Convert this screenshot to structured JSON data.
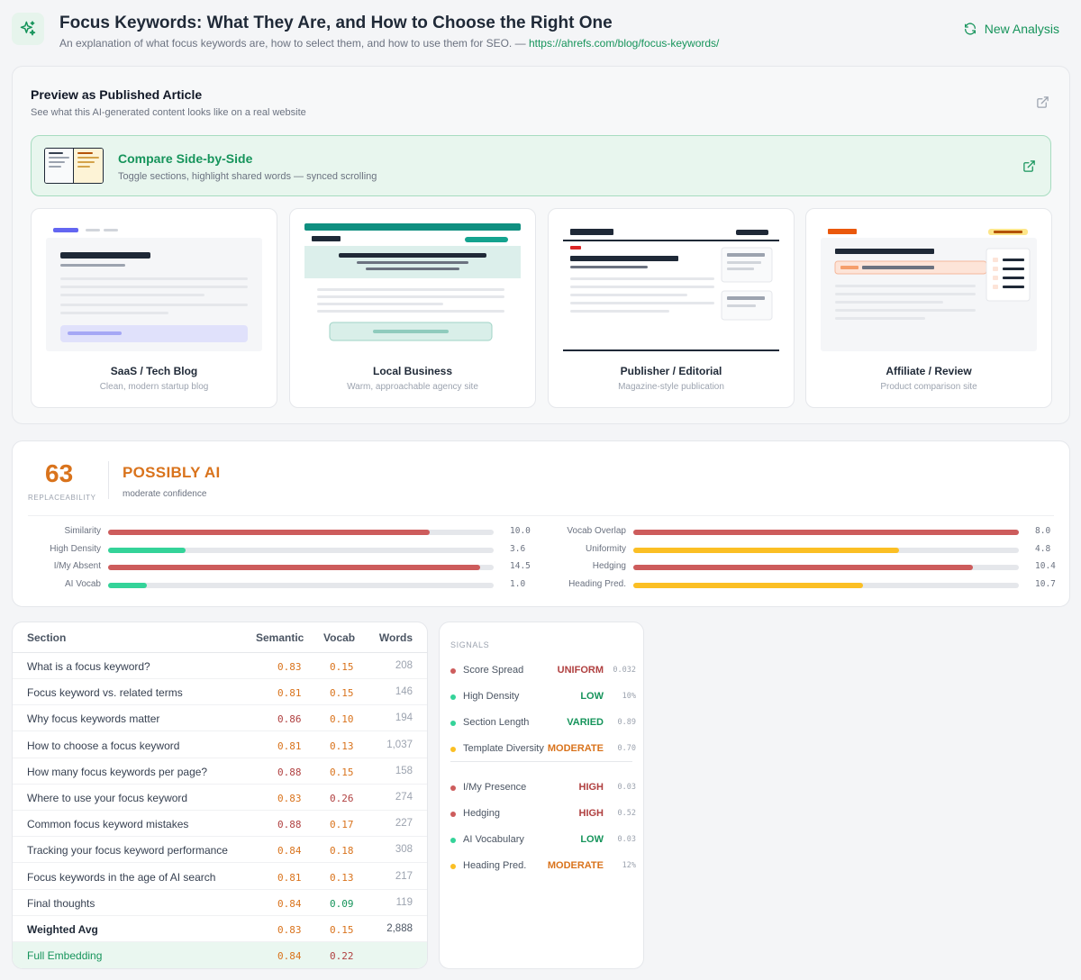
{
  "header": {
    "title": "Focus Keywords: What They Are, and How to Choose the Right One",
    "subtitle": "An explanation of what focus keywords are, how to select them, and how to use them for SEO. —",
    "url": "https://ahrefs.com/blog/focus-keywords/",
    "new_analysis_label": "New Analysis",
    "logo_icon": "sparkles-icon"
  },
  "preview": {
    "title": "Preview as Published Article",
    "description": "See what this AI-generated content looks like on a real website",
    "compare": {
      "title": "Compare Side-by-Side",
      "description": "Toggle sections, highlight shared words — synced scrolling"
    },
    "templates": [
      {
        "name": "SaaS / Tech Blog",
        "description": "Clean, modern startup blog"
      },
      {
        "name": "Local Business",
        "description": "Warm, approachable agency site"
      },
      {
        "name": "Publisher / Editorial",
        "description": "Magazine-style publication"
      },
      {
        "name": "Affiliate / Review",
        "description": "Product comparison site"
      }
    ]
  },
  "score": {
    "value": "63",
    "label": "REPLACEABILITY",
    "verdict": "POSSIBLY AI",
    "confidence": "moderate confidence",
    "colors": {
      "red": "#cd5c5c",
      "green": "#34d399",
      "yellow": "#fbbf24",
      "orange": "#d9731c"
    },
    "metrics_left": [
      {
        "label": "Similarity",
        "value": "10.0",
        "fraction": 0.835,
        "color": "red"
      },
      {
        "label": "High Density",
        "value": "3.6",
        "fraction": 0.2,
        "color": "green"
      },
      {
        "label": "I/My Absent",
        "value": "14.5",
        "fraction": 0.965,
        "color": "red"
      },
      {
        "label": "AI Vocab",
        "value": "1.0",
        "fraction": 0.1,
        "color": "green"
      }
    ],
    "metrics_right": [
      {
        "label": "Vocab Overlap",
        "value": "8.0",
        "fraction": 1.0,
        "color": "red"
      },
      {
        "label": "Uniformity",
        "value": "4.8",
        "fraction": 0.69,
        "color": "yellow"
      },
      {
        "label": "Hedging",
        "value": "10.4",
        "fraction": 0.88,
        "color": "red"
      },
      {
        "label": "Heading Pred.",
        "value": "10.7",
        "fraction": 0.595,
        "color": "yellow"
      }
    ]
  },
  "table": {
    "headers": {
      "section": "Section",
      "semantic": "Semantic",
      "vocab": "Vocab",
      "words": "Words"
    },
    "rows": [
      {
        "section": "What is a focus keyword?",
        "semantic": "0.83",
        "vocab": "0.15",
        "words": "208",
        "sem_color": "#d9731c",
        "voc_color": "#d9731c"
      },
      {
        "section": "Focus keyword vs. related terms",
        "semantic": "0.81",
        "vocab": "0.15",
        "words": "146",
        "sem_color": "#d9731c",
        "voc_color": "#d9731c"
      },
      {
        "section": "Why focus keywords matter",
        "semantic": "0.86",
        "vocab": "0.10",
        "words": "194",
        "sem_color": "#b04040",
        "voc_color": "#d9731c"
      },
      {
        "section": "How to choose a focus keyword",
        "semantic": "0.81",
        "vocab": "0.13",
        "words": "1,037",
        "sem_color": "#d9731c",
        "voc_color": "#d9731c"
      },
      {
        "section": "How many focus keywords per page?",
        "semantic": "0.88",
        "vocab": "0.15",
        "words": "158",
        "sem_color": "#b04040",
        "voc_color": "#d9731c"
      },
      {
        "section": "Where to use your focus keyword",
        "semantic": "0.83",
        "vocab": "0.26",
        "words": "274",
        "sem_color": "#d9731c",
        "voc_color": "#b04040"
      },
      {
        "section": "Common focus keyword mistakes",
        "semantic": "0.88",
        "vocab": "0.17",
        "words": "227",
        "sem_color": "#b04040",
        "voc_color": "#d9731c"
      },
      {
        "section": "Tracking your focus keyword performance",
        "semantic": "0.84",
        "vocab": "0.18",
        "words": "308",
        "sem_color": "#d9731c",
        "voc_color": "#d9731c"
      },
      {
        "section": "Focus keywords in the age of AI search",
        "semantic": "0.81",
        "vocab": "0.13",
        "words": "217",
        "sem_color": "#d9731c",
        "voc_color": "#d9731c"
      },
      {
        "section": "Final thoughts",
        "semantic": "0.84",
        "vocab": "0.09",
        "words": "119",
        "sem_color": "#d9731c",
        "voc_color": "#16945b"
      }
    ],
    "weighted": {
      "section": "Weighted Avg",
      "semantic": "0.83",
      "vocab": "0.15",
      "words": "2,888"
    },
    "full": {
      "section": "Full Embedding",
      "semantic": "0.84",
      "vocab": "0.22"
    }
  },
  "signals": {
    "title": "SIGNALS",
    "group1": [
      {
        "label": "Score Spread",
        "value": "UNIFORM",
        "extra": "0.032",
        "dot": "#cd5c5c",
        "color": "#b04040"
      },
      {
        "label": "High Density",
        "value": "LOW",
        "extra": "10%",
        "dot": "#34d399",
        "color": "#16945b"
      },
      {
        "label": "Section Length",
        "value": "VARIED",
        "extra": "0.89",
        "dot": "#34d399",
        "color": "#16945b"
      },
      {
        "label": "Template Diversity",
        "value": "MODERATE",
        "extra": "0.70",
        "dot": "#fbbf24",
        "color": "#d9731c"
      }
    ],
    "group2": [
      {
        "label": "I/My Presence",
        "value": "HIGH",
        "extra": "0.03",
        "dot": "#cd5c5c",
        "color": "#b04040"
      },
      {
        "label": "Hedging",
        "value": "HIGH",
        "extra": "0.52",
        "dot": "#cd5c5c",
        "color": "#b04040"
      },
      {
        "label": "AI Vocabulary",
        "value": "LOW",
        "extra": "0.03",
        "dot": "#34d399",
        "color": "#16945b"
      },
      {
        "label": "Heading Pred.",
        "value": "MODERATE",
        "extra": "12%",
        "dot": "#fbbf24",
        "color": "#d9731c"
      }
    ]
  }
}
